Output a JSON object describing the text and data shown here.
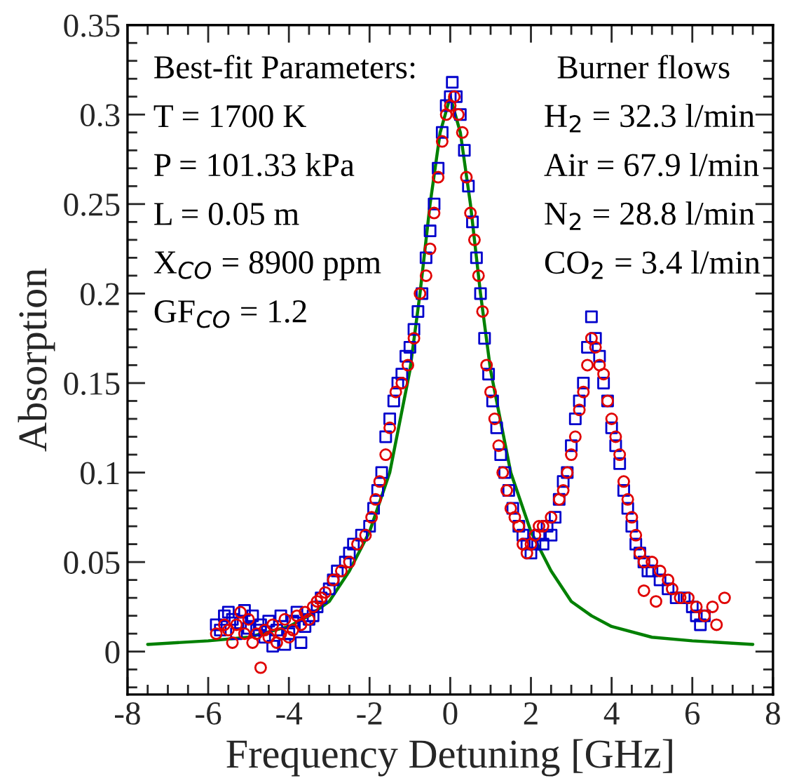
{
  "chart_data": {
    "type": "scatter",
    "xlabel": "Frequency Detuning [GHz]",
    "ylabel": "Absorption",
    "xlim": [
      -8,
      8
    ],
    "xticks": [
      -8,
      -6,
      -4,
      -2,
      0,
      2,
      4,
      6,
      8
    ],
    "ylim": [
      -0.024,
      0.35
    ],
    "yticks": [
      0,
      0.05,
      0.1,
      0.15,
      0.2,
      0.25,
      0.3,
      0.35
    ],
    "annotations": [
      "Best-fit Parameters:",
      "T = 1700 K",
      "P = 101.33 kPa",
      "L = 0.05 m",
      "X$_{CO}$ = 8900 ppm",
      "GF$_{CO}$ = 1.2",
      "Burner flows",
      "H$_{2}$ = 32.3 l/min",
      "Air = 67.9 l/min",
      "N$_{2}$ = 28.8 l/min",
      "CO$_{2}$ = 3.4 l/min"
    ],
    "series": [
      {
        "type": "line",
        "color": "#008000",
        "marker": "none",
        "line_style": "solid",
        "x": [
          -7.5,
          -6,
          -5,
          -4,
          -3.5,
          -3,
          -2.5,
          -2,
          -1.5,
          -1,
          -0.75,
          -0.5,
          -0.25,
          0,
          0.25,
          0.5,
          0.75,
          1,
          1.5,
          2,
          2.5,
          3,
          3.5,
          4,
          5,
          6,
          7.5
        ],
        "values": [
          0.004,
          0.006,
          0.008,
          0.014,
          0.02,
          0.028,
          0.045,
          0.067,
          0.1,
          0.157,
          0.2,
          0.25,
          0.29,
          0.31,
          0.29,
          0.25,
          0.2,
          0.157,
          0.1,
          0.067,
          0.045,
          0.028,
          0.02,
          0.014,
          0.008,
          0.006,
          0.004
        ]
      },
      {
        "color": "#0000cc",
        "marker": "square",
        "x": [
          -5.8,
          -5.7,
          -5.6,
          -5.5,
          -5.4,
          -5.3,
          -5.2,
          -5.1,
          -5.0,
          -4.9,
          -4.8,
          -4.7,
          -4.6,
          -4.5,
          -4.4,
          -4.3,
          -4.2,
          -4.1,
          -4.0,
          -3.9,
          -3.8,
          -3.7,
          -3.6,
          -3.5,
          -3.4,
          -3.3,
          -3.2,
          -3.0,
          -2.9,
          -2.8,
          -2.6,
          -2.5,
          -2.4,
          -2.2,
          -2.0,
          -1.9,
          -1.8,
          -1.7,
          -1.6,
          -1.5,
          -1.4,
          -1.3,
          -1.2,
          -1.1,
          -1.0,
          -0.9,
          -0.8,
          -0.7,
          -0.6,
          -0.5,
          -0.4,
          -0.3,
          -0.2,
          -0.1,
          0.0,
          0.05,
          0.15,
          0.25,
          0.35,
          0.45,
          0.55,
          0.65,
          0.75,
          0.85,
          0.95,
          1.05,
          1.15,
          1.25,
          1.35,
          1.45,
          1.55,
          1.7,
          1.8,
          1.9,
          2.0,
          2.1,
          2.2,
          2.3,
          2.4,
          2.5,
          2.6,
          2.7,
          2.8,
          2.9,
          3.0,
          3.1,
          3.2,
          3.3,
          3.4,
          3.5,
          3.6,
          3.7,
          3.8,
          3.9,
          4.0,
          4.1,
          4.2,
          4.3,
          4.4,
          4.5,
          4.6,
          4.7,
          4.8,
          4.9,
          5.0,
          5.2,
          5.4,
          5.6,
          5.8,
          6.0,
          6.1,
          6.2,
          6.3
        ],
        "values": [
          0.015,
          0.012,
          0.02,
          0.022,
          0.018,
          0.01,
          0.016,
          0.023,
          0.013,
          0.02,
          0.012,
          0.015,
          0.008,
          0.017,
          0.003,
          0.012,
          0.02,
          0.004,
          0.01,
          0.017,
          0.022,
          0.005,
          0.014,
          0.018,
          0.02,
          0.025,
          0.03,
          0.035,
          0.04,
          0.045,
          0.05,
          0.055,
          0.06,
          0.065,
          0.07,
          0.08,
          0.09,
          0.1,
          0.12,
          0.13,
          0.14,
          0.15,
          0.155,
          0.165,
          0.17,
          0.18,
          0.19,
          0.2,
          0.22,
          0.235,
          0.25,
          0.27,
          0.29,
          0.305,
          0.31,
          0.318,
          0.31,
          0.3,
          0.28,
          0.26,
          0.24,
          0.22,
          0.2,
          0.175,
          0.155,
          0.14,
          0.125,
          0.11,
          0.1,
          0.09,
          0.08,
          0.07,
          0.065,
          0.06,
          0.055,
          0.06,
          0.065,
          0.06,
          0.07,
          0.065,
          0.075,
          0.085,
          0.095,
          0.1,
          0.115,
          0.13,
          0.14,
          0.15,
          0.17,
          0.187,
          0.175,
          0.165,
          0.15,
          0.14,
          0.125,
          0.115,
          0.105,
          0.09,
          0.08,
          0.07,
          0.06,
          0.055,
          0.05,
          0.045,
          0.045,
          0.04,
          0.035,
          0.03,
          0.03,
          0.025,
          0.02,
          0.015,
          0.02
        ]
      },
      {
        "color": "#e00000",
        "marker": "circle",
        "x": [
          -5.8,
          -5.6,
          -5.5,
          -5.4,
          -5.3,
          -5.2,
          -5.1,
          -5.0,
          -4.9,
          -4.8,
          -4.7,
          -4.6,
          -4.5,
          -4.4,
          -4.3,
          -4.2,
          -4.1,
          -4.0,
          -3.9,
          -3.8,
          -3.7,
          -3.6,
          -3.5,
          -3.4,
          -3.3,
          -3.2,
          -3.1,
          -2.9,
          -2.7,
          -2.5,
          -2.3,
          -2.1,
          -1.95,
          -1.85,
          -1.75,
          -1.6,
          -1.5,
          -1.35,
          -1.2,
          -1.05,
          -0.9,
          -0.75,
          -0.6,
          -0.5,
          -0.4,
          -0.3,
          -0.2,
          -0.1,
          0.0,
          0.1,
          0.2,
          0.3,
          0.4,
          0.5,
          0.6,
          0.7,
          0.8,
          0.9,
          1.0,
          1.1,
          1.2,
          1.3,
          1.4,
          1.5,
          1.6,
          1.7,
          1.8,
          1.9,
          2.0,
          2.1,
          2.2,
          2.3,
          2.5,
          2.7,
          2.8,
          2.9,
          3.0,
          3.1,
          3.2,
          3.3,
          3.4,
          3.5,
          3.6,
          3.7,
          3.8,
          3.9,
          4.0,
          4.1,
          4.2,
          4.3,
          4.4,
          4.5,
          4.6,
          4.7,
          4.8,
          4.8,
          5.0,
          5.1,
          5.2,
          5.4,
          5.5,
          5.7,
          5.9,
          6.1,
          6.3,
          6.5,
          6.6,
          6.8
        ],
        "values": [
          0.01,
          0.015,
          0.012,
          0.005,
          0.015,
          0.022,
          0.01,
          0.018,
          0.005,
          0.01,
          -0.009,
          0.012,
          0.008,
          0.015,
          0.005,
          0.01,
          0.018,
          0.008,
          0.012,
          0.02,
          0.015,
          0.022,
          0.018,
          0.025,
          0.028,
          0.03,
          0.033,
          0.04,
          0.045,
          0.05,
          0.06,
          0.065,
          0.075,
          0.085,
          0.095,
          0.11,
          0.125,
          0.145,
          0.15,
          0.16,
          0.175,
          0.2,
          0.21,
          0.225,
          0.245,
          0.265,
          0.285,
          0.3,
          0.305,
          0.31,
          0.3,
          0.29,
          0.265,
          0.245,
          0.23,
          0.21,
          0.19,
          0.16,
          0.145,
          0.13,
          0.115,
          0.1,
          0.09,
          0.08,
          0.075,
          0.07,
          0.06,
          0.055,
          0.06,
          0.065,
          0.07,
          0.07,
          0.075,
          0.085,
          0.09,
          0.1,
          0.11,
          0.12,
          0.135,
          0.145,
          0.16,
          0.175,
          0.17,
          0.16,
          0.155,
          0.14,
          0.13,
          0.12,
          0.11,
          0.095,
          0.085,
          0.075,
          0.065,
          0.055,
          0.05,
          0.034,
          0.05,
          0.028,
          0.045,
          0.04,
          0.035,
          0.03,
          0.03,
          0.025,
          0.02,
          0.025,
          0.015,
          0.03
        ]
      }
    ]
  }
}
